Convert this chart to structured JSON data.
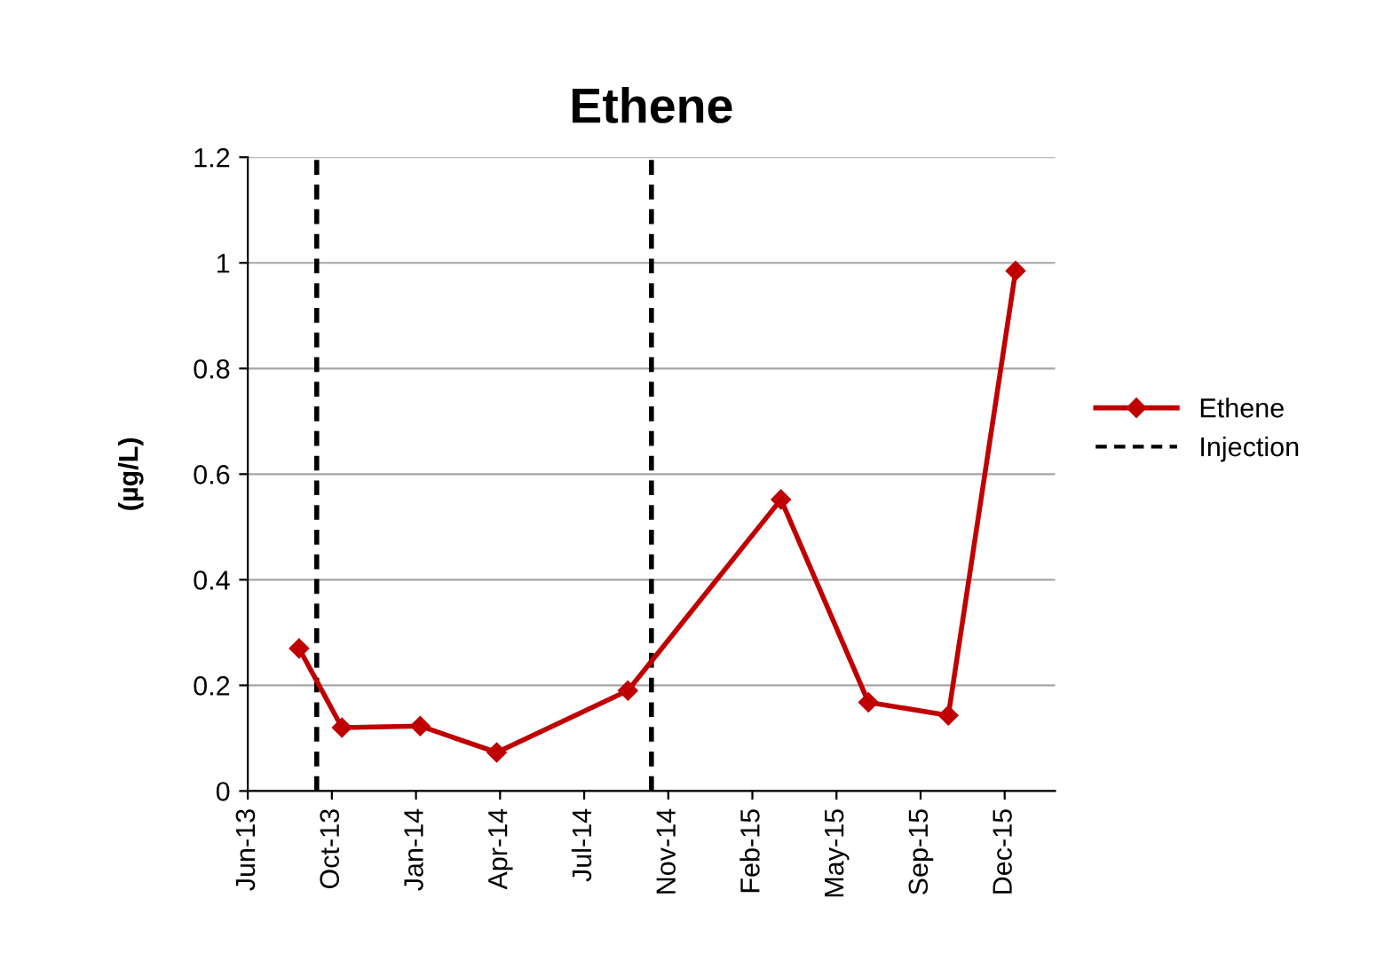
{
  "chart_data": {
    "type": "line",
    "title": "Ethene",
    "ylabel": "(µg/L)",
    "x": [
      "2013-08-23",
      "2013-10-13",
      "2014-01-14",
      "2014-04-15",
      "2014-09-18",
      "2015-03-19",
      "2015-07-01",
      "2015-10-04",
      "2015-12-23"
    ],
    "series": [
      {
        "name": "Ethene",
        "color": "#c00000",
        "values": [
          0.27,
          0.12,
          0.123,
          0.073,
          0.19,
          0.552,
          0.168,
          0.143,
          0.985
        ]
      }
    ],
    "marker": "diamond",
    "line_style": "solid",
    "xlim": [
      "2013-06-23",
      "2016-02-08"
    ],
    "xticks": [
      {
        "value": "2013-06-23",
        "label": "Jun-13"
      },
      {
        "value": "2013-10-01",
        "label": "Oct-13"
      },
      {
        "value": "2014-01-09",
        "label": "Jan-14"
      },
      {
        "value": "2014-04-19",
        "label": "Apr-14"
      },
      {
        "value": "2014-07-28",
        "label": "Jul-14"
      },
      {
        "value": "2014-11-05",
        "label": "Nov-14"
      },
      {
        "value": "2015-02-13",
        "label": "Feb-15"
      },
      {
        "value": "2015-05-24",
        "label": "May-15"
      },
      {
        "value": "2015-09-01",
        "label": "Sep-15"
      },
      {
        "value": "2015-12-10",
        "label": "Dec-15"
      }
    ],
    "ylim": [
      0,
      1.2
    ],
    "yticks": [
      0,
      0.2,
      0.4,
      0.6,
      0.8,
      1,
      1.2
    ],
    "ref_lines": [
      {
        "axis": "x",
        "value": "2013-09-13",
        "label": "Injection",
        "color": "#000000",
        "line_style": "dashed"
      },
      {
        "axis": "x",
        "value": "2014-10-16",
        "color": "#000000",
        "line_style": "dashed"
      }
    ],
    "grid": "y",
    "legend": "right"
  }
}
